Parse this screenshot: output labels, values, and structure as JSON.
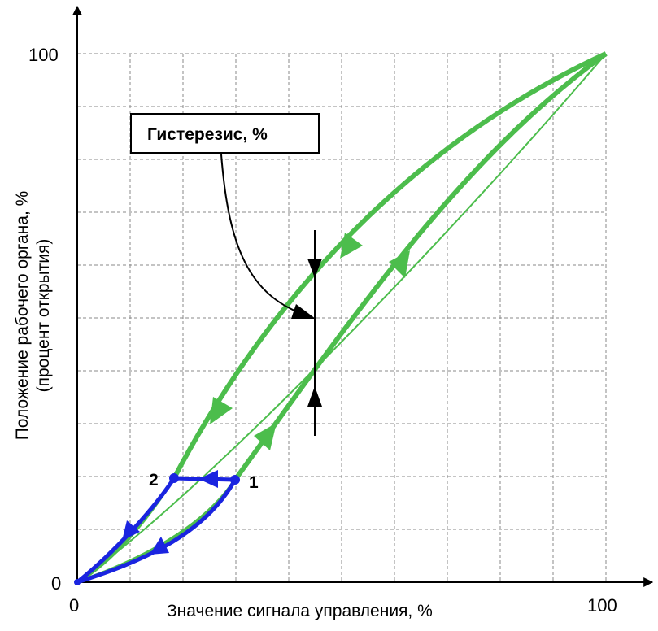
{
  "axes": {
    "x_title": "Значение сигнала управления, %",
    "y_title_line1": "Положение рабочего органа, %",
    "y_title_line2": "(процент открытия)",
    "x_tick_min": "0",
    "x_tick_max": "100",
    "y_tick_min": "0",
    "y_tick_max": "100"
  },
  "callout": {
    "text": "Гистерезис, %"
  },
  "points": {
    "p1": "1",
    "p2": "2"
  },
  "colors": {
    "green": "#4cbd4c",
    "blue": "#1a24e0",
    "grid": "#8a8a8a",
    "ink": "#000000"
  }
}
